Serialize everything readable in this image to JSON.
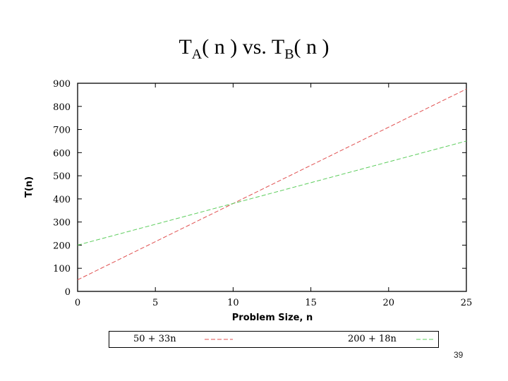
{
  "slide": {
    "title_main_a": "T",
    "title_sub_a": "A",
    "title_mid": "( n ) vs. T",
    "title_sub_b": "B",
    "title_end": "( n )",
    "page_number": "39"
  },
  "chart_data": {
    "type": "line",
    "xlabel": "Problem Size, n",
    "ylabel": "T(n)",
    "xlim": [
      0,
      25
    ],
    "ylim": [
      0,
      900
    ],
    "xticks": [
      0,
      5,
      10,
      15,
      20,
      25
    ],
    "yticks": [
      0,
      100,
      200,
      300,
      400,
      500,
      600,
      700,
      800,
      900
    ],
    "grid": false,
    "legend_position": "bottom",
    "series": [
      {
        "name": "50 + 33n",
        "color": "#e05050",
        "dash": "dashed",
        "x": [
          0,
          25
        ],
        "y": [
          50,
          875
        ]
      },
      {
        "name": "200 + 18n",
        "color": "#5ccd5c",
        "dash": "dashed",
        "x": [
          0,
          25
        ],
        "y": [
          200,
          650
        ]
      }
    ]
  }
}
